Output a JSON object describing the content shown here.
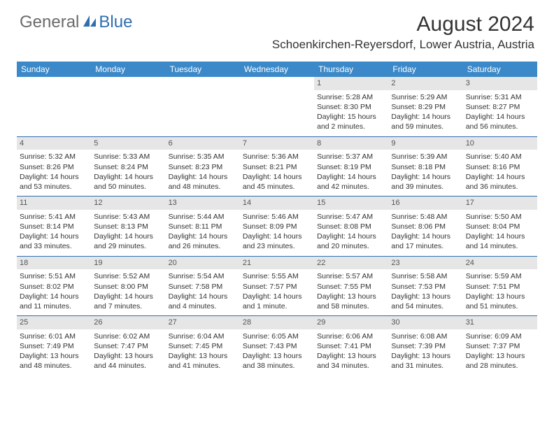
{
  "logo": {
    "text1": "General",
    "text2": "Blue"
  },
  "title": "August 2024",
  "location": "Schoenkirchen-Reyersdorf, Lower Austria, Austria",
  "colors": {
    "header_bg": "#3b89c9",
    "border": "#2f6fb0",
    "daynum_bg": "#e6e6e6",
    "text": "#333333",
    "logo_gray": "#6b6b6b",
    "logo_blue": "#2f6fb0"
  },
  "day_names": [
    "Sunday",
    "Monday",
    "Tuesday",
    "Wednesday",
    "Thursday",
    "Friday",
    "Saturday"
  ],
  "weeks": [
    [
      null,
      null,
      null,
      null,
      {
        "n": "1",
        "sr": "Sunrise: 5:28 AM",
        "ss": "Sunset: 8:30 PM",
        "dl": "Daylight: 15 hours and 2 minutes."
      },
      {
        "n": "2",
        "sr": "Sunrise: 5:29 AM",
        "ss": "Sunset: 8:29 PM",
        "dl": "Daylight: 14 hours and 59 minutes."
      },
      {
        "n": "3",
        "sr": "Sunrise: 5:31 AM",
        "ss": "Sunset: 8:27 PM",
        "dl": "Daylight: 14 hours and 56 minutes."
      }
    ],
    [
      {
        "n": "4",
        "sr": "Sunrise: 5:32 AM",
        "ss": "Sunset: 8:26 PM",
        "dl": "Daylight: 14 hours and 53 minutes."
      },
      {
        "n": "5",
        "sr": "Sunrise: 5:33 AM",
        "ss": "Sunset: 8:24 PM",
        "dl": "Daylight: 14 hours and 50 minutes."
      },
      {
        "n": "6",
        "sr": "Sunrise: 5:35 AM",
        "ss": "Sunset: 8:23 PM",
        "dl": "Daylight: 14 hours and 48 minutes."
      },
      {
        "n": "7",
        "sr": "Sunrise: 5:36 AM",
        "ss": "Sunset: 8:21 PM",
        "dl": "Daylight: 14 hours and 45 minutes."
      },
      {
        "n": "8",
        "sr": "Sunrise: 5:37 AM",
        "ss": "Sunset: 8:19 PM",
        "dl": "Daylight: 14 hours and 42 minutes."
      },
      {
        "n": "9",
        "sr": "Sunrise: 5:39 AM",
        "ss": "Sunset: 8:18 PM",
        "dl": "Daylight: 14 hours and 39 minutes."
      },
      {
        "n": "10",
        "sr": "Sunrise: 5:40 AM",
        "ss": "Sunset: 8:16 PM",
        "dl": "Daylight: 14 hours and 36 minutes."
      }
    ],
    [
      {
        "n": "11",
        "sr": "Sunrise: 5:41 AM",
        "ss": "Sunset: 8:14 PM",
        "dl": "Daylight: 14 hours and 33 minutes."
      },
      {
        "n": "12",
        "sr": "Sunrise: 5:43 AM",
        "ss": "Sunset: 8:13 PM",
        "dl": "Daylight: 14 hours and 29 minutes."
      },
      {
        "n": "13",
        "sr": "Sunrise: 5:44 AM",
        "ss": "Sunset: 8:11 PM",
        "dl": "Daylight: 14 hours and 26 minutes."
      },
      {
        "n": "14",
        "sr": "Sunrise: 5:46 AM",
        "ss": "Sunset: 8:09 PM",
        "dl": "Daylight: 14 hours and 23 minutes."
      },
      {
        "n": "15",
        "sr": "Sunrise: 5:47 AM",
        "ss": "Sunset: 8:08 PM",
        "dl": "Daylight: 14 hours and 20 minutes."
      },
      {
        "n": "16",
        "sr": "Sunrise: 5:48 AM",
        "ss": "Sunset: 8:06 PM",
        "dl": "Daylight: 14 hours and 17 minutes."
      },
      {
        "n": "17",
        "sr": "Sunrise: 5:50 AM",
        "ss": "Sunset: 8:04 PM",
        "dl": "Daylight: 14 hours and 14 minutes."
      }
    ],
    [
      {
        "n": "18",
        "sr": "Sunrise: 5:51 AM",
        "ss": "Sunset: 8:02 PM",
        "dl": "Daylight: 14 hours and 11 minutes."
      },
      {
        "n": "19",
        "sr": "Sunrise: 5:52 AM",
        "ss": "Sunset: 8:00 PM",
        "dl": "Daylight: 14 hours and 7 minutes."
      },
      {
        "n": "20",
        "sr": "Sunrise: 5:54 AM",
        "ss": "Sunset: 7:58 PM",
        "dl": "Daylight: 14 hours and 4 minutes."
      },
      {
        "n": "21",
        "sr": "Sunrise: 5:55 AM",
        "ss": "Sunset: 7:57 PM",
        "dl": "Daylight: 14 hours and 1 minute."
      },
      {
        "n": "22",
        "sr": "Sunrise: 5:57 AM",
        "ss": "Sunset: 7:55 PM",
        "dl": "Daylight: 13 hours and 58 minutes."
      },
      {
        "n": "23",
        "sr": "Sunrise: 5:58 AM",
        "ss": "Sunset: 7:53 PM",
        "dl": "Daylight: 13 hours and 54 minutes."
      },
      {
        "n": "24",
        "sr": "Sunrise: 5:59 AM",
        "ss": "Sunset: 7:51 PM",
        "dl": "Daylight: 13 hours and 51 minutes."
      }
    ],
    [
      {
        "n": "25",
        "sr": "Sunrise: 6:01 AM",
        "ss": "Sunset: 7:49 PM",
        "dl": "Daylight: 13 hours and 48 minutes."
      },
      {
        "n": "26",
        "sr": "Sunrise: 6:02 AM",
        "ss": "Sunset: 7:47 PM",
        "dl": "Daylight: 13 hours and 44 minutes."
      },
      {
        "n": "27",
        "sr": "Sunrise: 6:04 AM",
        "ss": "Sunset: 7:45 PM",
        "dl": "Daylight: 13 hours and 41 minutes."
      },
      {
        "n": "28",
        "sr": "Sunrise: 6:05 AM",
        "ss": "Sunset: 7:43 PM",
        "dl": "Daylight: 13 hours and 38 minutes."
      },
      {
        "n": "29",
        "sr": "Sunrise: 6:06 AM",
        "ss": "Sunset: 7:41 PM",
        "dl": "Daylight: 13 hours and 34 minutes."
      },
      {
        "n": "30",
        "sr": "Sunrise: 6:08 AM",
        "ss": "Sunset: 7:39 PM",
        "dl": "Daylight: 13 hours and 31 minutes."
      },
      {
        "n": "31",
        "sr": "Sunrise: 6:09 AM",
        "ss": "Sunset: 7:37 PM",
        "dl": "Daylight: 13 hours and 28 minutes."
      }
    ]
  ]
}
